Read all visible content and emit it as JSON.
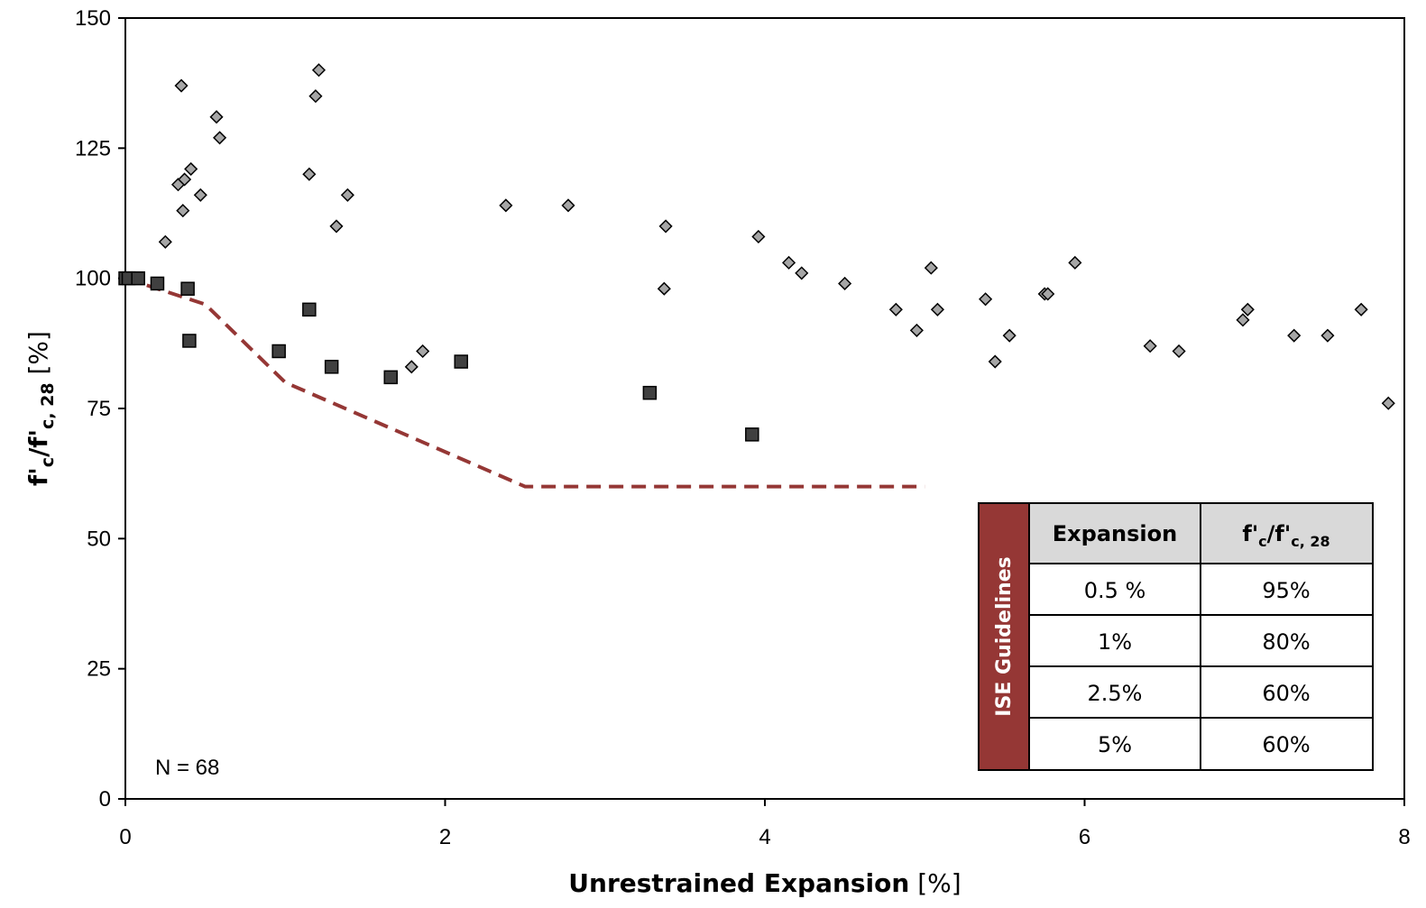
{
  "chart_data": {
    "type": "scatter",
    "xlabel_bold": "Unrestrained Expansion",
    "xlabel_unit": "[%]",
    "ylabel_main": "f'",
    "ylabel_sub1": "c",
    "ylabel_mid": "/f'",
    "ylabel_sub2": "c, 28",
    "ylabel_unit": "[%]",
    "xlim": [
      0,
      8
    ],
    "ylim": [
      0,
      150
    ],
    "x_ticks": [
      0,
      2,
      4,
      6,
      8
    ],
    "x_tick_labels": [
      "0",
      "2",
      "4",
      "6",
      "8"
    ],
    "y_ticks": [
      0,
      25,
      50,
      75,
      100,
      125,
      150
    ],
    "y_tick_labels": [
      "0",
      "25",
      "50",
      "75",
      "100",
      "125",
      "150"
    ],
    "grid": false,
    "annotation": "N = 68",
    "colors": {
      "diamond_fill": "#a6a6a6",
      "square_fill": "#404040",
      "guideline": "#953735",
      "table_header": "#d9d9d9",
      "side_bar": "#953735"
    },
    "series": [
      {
        "marker": "diamond",
        "x": [
          0.0,
          0.03,
          0.25,
          0.33,
          0.35,
          0.36,
          0.37,
          0.41,
          0.47,
          0.57,
          0.59,
          1.15,
          1.19,
          1.21,
          1.32,
          1.39,
          1.79,
          1.86,
          2.38,
          2.77,
          3.37,
          3.38,
          3.96,
          4.15,
          4.23,
          4.5,
          4.82,
          4.95,
          5.04,
          5.08,
          5.38,
          5.44,
          5.53,
          5.75,
          5.77,
          5.94,
          6.41,
          6.59,
          6.99,
          7.02,
          7.31,
          7.52,
          7.73,
          7.9
        ],
        "y": [
          100,
          100,
          107,
          118,
          137,
          113,
          119,
          121,
          116,
          131,
          127,
          120,
          135,
          140,
          110,
          116,
          83,
          86,
          114,
          114,
          98,
          110,
          108,
          103,
          101,
          99,
          94,
          90,
          102,
          94,
          96,
          84,
          89,
          97,
          97,
          103,
          87,
          86,
          92,
          94,
          89,
          89,
          94,
          76
        ]
      },
      {
        "marker": "square",
        "x": [
          0.0,
          0.02,
          0.08,
          0.2,
          0.39,
          0.4,
          0.96,
          1.15,
          1.29,
          1.66,
          2.1,
          3.28,
          3.92
        ],
        "y": [
          100,
          100,
          100,
          99,
          98,
          88,
          86,
          94,
          83,
          81,
          84,
          78,
          70
        ]
      },
      {
        "marker": "dashed-line",
        "x": [
          0,
          0.5,
          1,
          2.5,
          5
        ],
        "y": [
          100,
          95,
          80,
          60,
          60
        ]
      }
    ],
    "table": {
      "side_title": "ISE Guidelines",
      "header_expansion": "Expansion",
      "header_ratio_main": "f'",
      "header_ratio_sub1": "c",
      "header_ratio_mid": "/f'",
      "header_ratio_sub2": "c, 28",
      "rows": [
        {
          "expansion": "0.5 %",
          "ratio": "95%"
        },
        {
          "expansion": "1%",
          "ratio": "80%"
        },
        {
          "expansion": "2.5%",
          "ratio": "60%"
        },
        {
          "expansion": "5%",
          "ratio": "60%"
        }
      ]
    }
  }
}
